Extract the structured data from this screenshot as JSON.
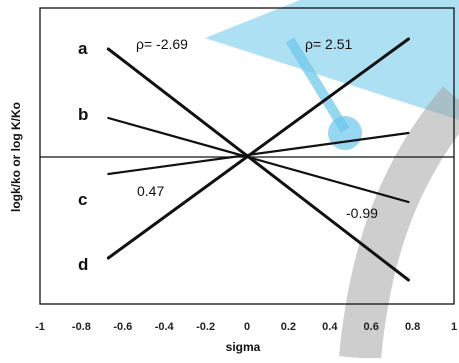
{
  "chart_data": {
    "type": "line",
    "xlabel": "sigma",
    "ylabel": "logk/ko or log K/Ko",
    "xlim": [
      -1,
      1
    ],
    "x_ticks": [
      "-1",
      "-0.8",
      "-0.6",
      "-0.4",
      "-0.2",
      "0",
      "0.2",
      "0.4",
      "0.6",
      "0.8",
      "1"
    ],
    "grid": false,
    "panel_labels": [
      "a",
      "b",
      "c",
      "d"
    ],
    "series": [
      {
        "x": [
          -0.67,
          0.78
        ],
        "y": [
          2.69,
          -2.69
        ],
        "label": "ρ= -2.69"
      },
      {
        "x": [
          -0.67,
          0.78
        ],
        "y": [
          2.51,
          2.51
        ],
        "label": "ρ= 2.51"
      },
      {
        "x": [
          -0.67,
          0.78
        ],
        "y": [
          0.47,
          0.47
        ],
        "label": "0.47"
      },
      {
        "x": [
          -0.67,
          0.78
        ],
        "y": [
          -0.99,
          -0.99
        ],
        "label": "-0.99"
      }
    ]
  }
}
